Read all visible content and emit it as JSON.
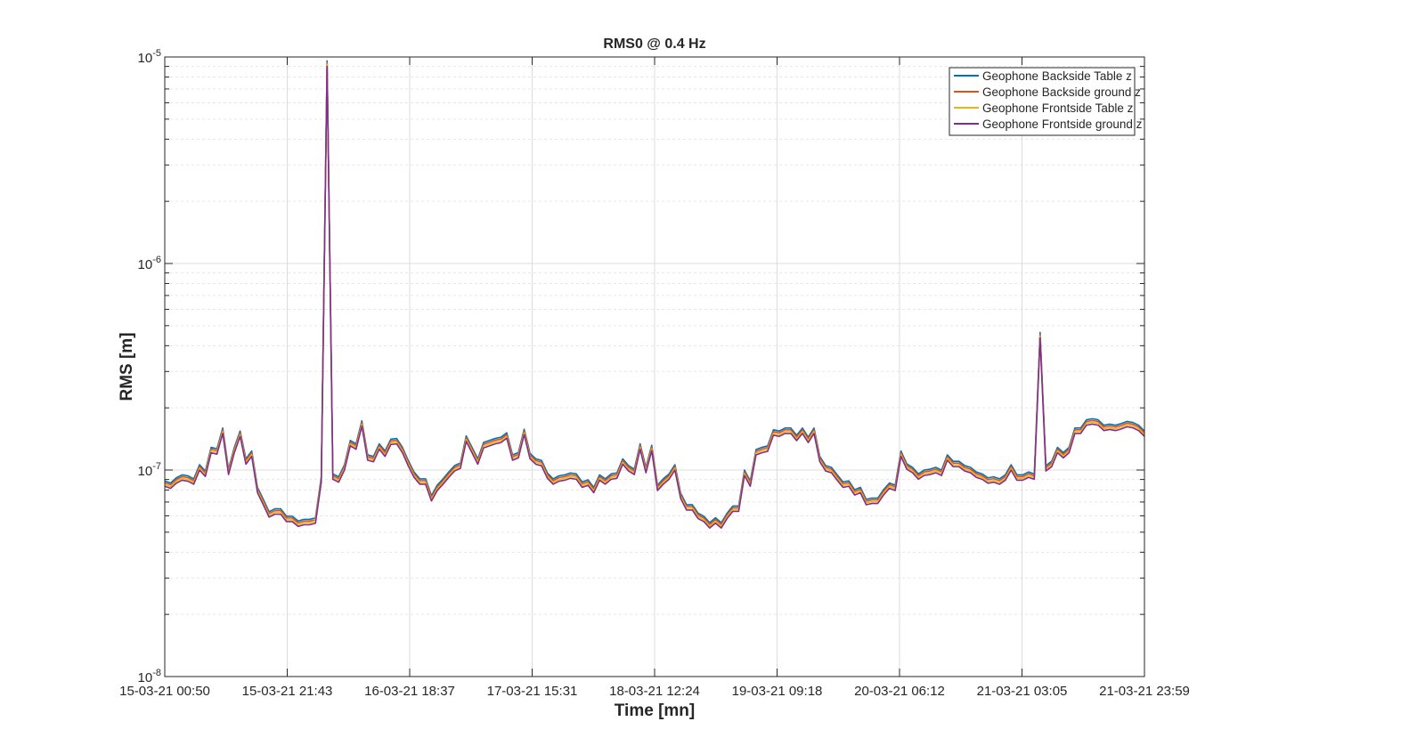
{
  "chart_data": {
    "type": "line",
    "title": "RMS0 @ 0.4 Hz",
    "xlabel": "Time [mn]",
    "ylabel": "RMS [m]",
    "yscale": "log",
    "ylim": [
      1e-08,
      1e-05
    ],
    "x_start": "15-03-21 00:50",
    "x_end": "21-03-21 23:59",
    "x_tick_labels": [
      "15-03-21 00:50",
      "15-03-21 21:43",
      "16-03-21 18:37",
      "17-03-21 15:31",
      "18-03-21 12:24",
      "19-03-21 09:18",
      "20-03-21 06:12",
      "21-03-21 03:05",
      "21-03-21 23:59"
    ],
    "y_tick_labels": [
      {
        "base": "10",
        "exp": "-8",
        "value": 1e-08
      },
      {
        "base": "10",
        "exp": "-7",
        "value": 1e-07
      },
      {
        "base": "10",
        "exp": "-6",
        "value": 1e-06
      },
      {
        "base": "10",
        "exp": "-5",
        "value": 1e-05
      }
    ],
    "grid": true,
    "legend_position": "top-right",
    "colors": [
      "#0072BD",
      "#D95319",
      "#EDB120",
      "#7E2F8E"
    ],
    "series": [
      {
        "name": "Geophone Backside Table z",
        "color": "#0072BD",
        "offset": 1.03
      },
      {
        "name": "Geophone Backside ground z",
        "color": "#D95319",
        "offset": 1.01
      },
      {
        "name": "Geophone Frontside Table z",
        "color": "#EDB120",
        "offset": 0.99
      },
      {
        "name": "Geophone Frontside ground z",
        "color": "#7E2F8E",
        "offset": 0.97
      }
    ],
    "base_values": [
      8.6e-08,
      8.4e-08,
      8.9e-08,
      9.2e-08,
      9.1e-08,
      8.8e-08,
      1.03e-07,
      9.6e-08,
      1.25e-07,
      1.23e-07,
      1.55e-07,
      9.8e-08,
      1.25e-07,
      1.5e-07,
      1.1e-07,
      1.2e-07,
      8e-08,
      7e-08,
      6.1e-08,
      6.3e-08,
      6.3e-08,
      5.8e-08,
      5.8e-08,
      5.5e-08,
      5.6e-08,
      5.6e-08,
      5.7e-08,
      9e-08,
      9.3e-06,
      9.3e-08,
      9e-08,
      1.03e-07,
      1.35e-07,
      1.3e-07,
      1.68e-07,
      1.15e-07,
      1.13e-07,
      1.3e-07,
      1.2e-07,
      1.37e-07,
      1.38e-07,
      1.25e-07,
      1.08e-07,
      9.5e-08,
      8.8e-08,
      8.8e-08,
      7.3e-08,
      8.2e-08,
      8.8e-08,
      9.5e-08,
      1.02e-07,
      1.05e-07,
      1.42e-07,
      1.25e-07,
      1.1e-07,
      1.32e-07,
      1.35e-07,
      1.38e-07,
      1.4e-07,
      1.47e-07,
      1.15e-07,
      1.18e-07,
      1.53e-07,
      1.17e-07,
      1.1e-07,
      1.08e-07,
      9.4e-08,
      8.8e-08,
      9.1e-08,
      9.2e-08,
      9.4e-08,
      9.3e-08,
      8.5e-08,
      8.7e-08,
      8e-08,
      9.2e-08,
      8.8e-08,
      9.3e-08,
      9.4e-08,
      1.1e-07,
      1.02e-07,
      9.8e-08,
      1.3e-07,
      1e-07,
      1.28e-07,
      8.2e-08,
      8.8e-08,
      9.3e-08,
      1.03e-07,
      7.5e-08,
      6.6e-08,
      6.6e-08,
      6e-08,
      5.8e-08,
      5.4e-08,
      5.7e-08,
      5.4e-08,
      6e-08,
      6.5e-08,
      6.5e-08,
      9.7e-08,
      8.6e-08,
      1.22e-07,
      1.25e-07,
      1.27e-07,
      1.52e-07,
      1.5e-07,
      1.55e-07,
      1.55e-07,
      1.43e-07,
      1.55e-07,
      1.4e-07,
      1.55e-07,
      1.13e-07,
      1.02e-07,
      1e-07,
      9.2e-08,
      8.5e-08,
      8.6e-08,
      7.8e-08,
      8e-08,
      7e-08,
      7.1e-08,
      7.1e-08,
      7.8e-08,
      8.4e-08,
      8.2e-08,
      1.2e-07,
      1.04e-07,
      1e-07,
      9.3e-08,
      9.7e-08,
      9.8e-08,
      1e-07,
      9.7e-08,
      1.15e-07,
      1.07e-07,
      1.07e-07,
      1.02e-07,
      1e-07,
      9.5e-08,
      9.3e-08,
      8.9e-08,
      9e-08,
      8.8e-08,
      9.2e-08,
      1.03e-07,
      9.2e-08,
      9.2e-08,
      9.5e-08,
      9.3e-08,
      4.5e-07,
      1.02e-07,
      1.07e-07,
      1.25e-07,
      1.18e-07,
      1.25e-07,
      1.55e-07,
      1.55e-07,
      1.7e-07,
      1.72e-07,
      1.7e-07,
      1.6e-07,
      1.62e-07,
      1.6e-07,
      1.63e-07,
      1.67e-07,
      1.65e-07,
      1.6e-07,
      1.5e-07
    ]
  }
}
